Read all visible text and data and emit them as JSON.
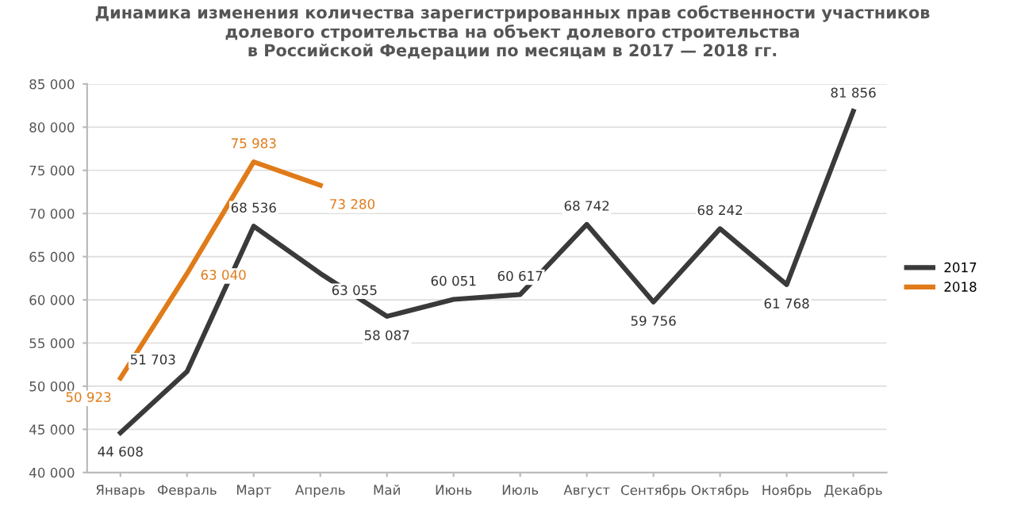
{
  "chart_data": {
    "type": "line",
    "title": "Динамика изменения количества зарегистрированных прав собственности участников\nдолевого строительства на объект долевого строительства\nв Российской Федерации по месяцам в 2017 — 2018 гг.",
    "categories": [
      "Январь",
      "Февраль",
      "Март",
      "Апрель",
      "Май",
      "Июнь",
      "Июль",
      "Август",
      "Сентябрь",
      "Октябрь",
      "Ноябрь",
      "Декабрь"
    ],
    "series": [
      {
        "name": "2017",
        "color": "#3a3a3a",
        "values": [
          44608,
          51703,
          68536,
          63055,
          58087,
          60051,
          60617,
          68742,
          59756,
          68242,
          61768,
          81856
        ],
        "value_labels": [
          "44 608",
          "51 703",
          "68 536",
          "63 055",
          "58 087",
          "60 051",
          "60 617",
          "68 742",
          "59 756",
          "68 242",
          "61 768",
          "81 856"
        ]
      },
      {
        "name": "2018",
        "color": "#e07b1a",
        "values": [
          50923,
          63040,
          75983,
          73280,
          null,
          null,
          null,
          null,
          null,
          null,
          null,
          null
        ],
        "value_labels": [
          "50 923",
          "63 040",
          "75 983",
          "73 280",
          null,
          null,
          null,
          null,
          null,
          null,
          null,
          null
        ]
      }
    ],
    "ylim": [
      40000,
      85000
    ],
    "yticks": [
      {
        "value": 40000,
        "label": "40 000"
      },
      {
        "value": 45000,
        "label": "45 000"
      },
      {
        "value": 50000,
        "label": "50 000"
      },
      {
        "value": 55000,
        "label": "55 000"
      },
      {
        "value": 60000,
        "label": "60 000"
      },
      {
        "value": 65000,
        "label": "65 000"
      },
      {
        "value": 70000,
        "label": "70 000"
      },
      {
        "value": 75000,
        "label": "75 000"
      },
      {
        "value": 80000,
        "label": "80 000"
      },
      {
        "value": 85000,
        "label": "85 000"
      }
    ],
    "grid": "y",
    "legend": "right",
    "marker": "none",
    "line_style": "solid"
  }
}
